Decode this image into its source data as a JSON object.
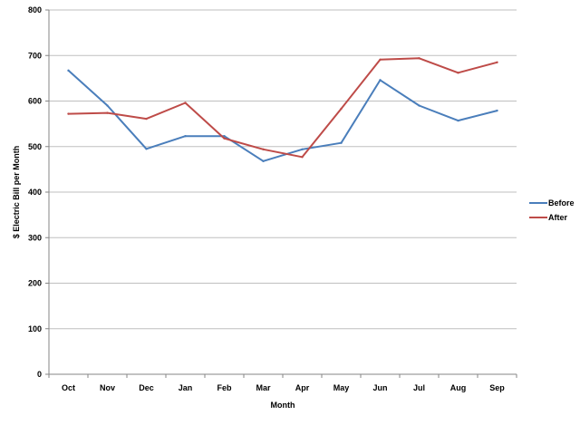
{
  "chart_data": {
    "type": "line",
    "title": "",
    "xlabel": "Month",
    "ylabel": "$ Electric Bill per Month",
    "categories": [
      "Oct",
      "Nov",
      "Dec",
      "Jan",
      "Feb",
      "Mar",
      "Apr",
      "May",
      "Jun",
      "Jul",
      "Aug",
      "Sep"
    ],
    "ylim": [
      0,
      800
    ],
    "yticks": [
      0,
      100,
      200,
      300,
      400,
      500,
      600,
      700,
      800
    ],
    "grid": "horizontal",
    "legend_position": "right",
    "series": [
      {
        "name": "Before",
        "color": "#4a7ebb",
        "values": [
          667,
          590,
          495,
          523,
          523,
          468,
          494,
          508,
          646,
          590,
          557,
          579
        ]
      },
      {
        "name": "After",
        "color": "#be4b48",
        "values": [
          572,
          574,
          561,
          596,
          518,
          494,
          477,
          583,
          691,
          694,
          662,
          685
        ]
      }
    ]
  }
}
